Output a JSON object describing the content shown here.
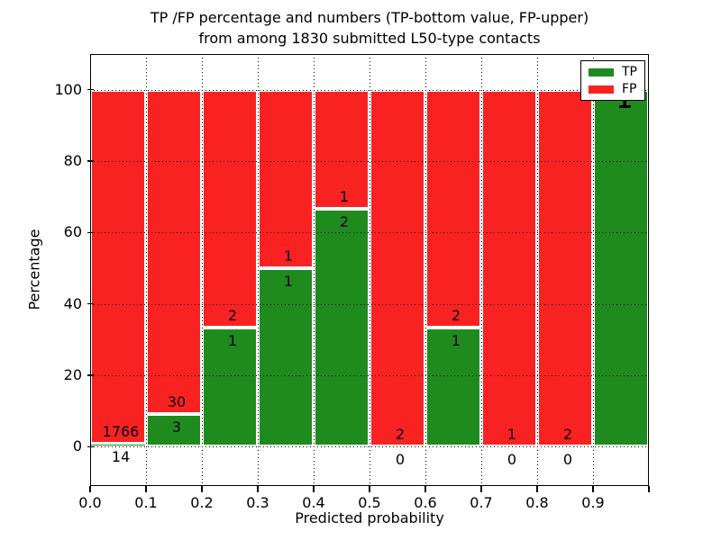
{
  "title": {
    "line1": "TP /FP percentage and numbers (TP-bottom value, FP-upper)",
    "line2": "from among 1830 submitted L50-type contacts"
  },
  "axes": {
    "xlabel": "Predicted probability",
    "ylabel": "Percentage",
    "x_tick_labels": [
      "0.0",
      "0.1",
      "0.2",
      "0.3",
      "0.4",
      "0.5",
      "0.6",
      "0.7",
      "0.8",
      "0.9"
    ],
    "y_tick_labels": [
      "0",
      "20",
      "40",
      "60",
      "80",
      "100"
    ]
  },
  "legend": {
    "items": [
      {
        "label": "TP",
        "color": "#1f8b1f"
      },
      {
        "label": "FP",
        "color": "#f92222"
      }
    ]
  },
  "colors": {
    "tp_green": "#1f8b1f",
    "fp_red": "#f92222",
    "bar_edge": "#ffffff",
    "text": "#000000",
    "background": "#ffffff"
  },
  "chart_data": {
    "type": "bar",
    "subtype": "stacked_percentage",
    "title": "TP /FP percentage and numbers (TP-bottom value, FP-upper) from among 1830 submitted L50-type contacts",
    "xlabel": "Predicted probability",
    "ylabel": "Percentage",
    "xlim": [
      0.0,
      1.0
    ],
    "ylim": [
      -11,
      110
    ],
    "grid": true,
    "legend_position": "upper right",
    "total_submitted": 1830,
    "bin_width": 0.1,
    "categories": [
      "0.0-0.1",
      "0.1-0.2",
      "0.2-0.3",
      "0.3-0.4",
      "0.4-0.5",
      "0.5-0.6",
      "0.6-0.7",
      "0.7-0.8",
      "0.8-0.9",
      "0.9-1.0"
    ],
    "series": [
      {
        "name": "TP",
        "color": "#1f8b1f",
        "values": [
          14,
          3,
          1,
          1,
          2,
          0,
          1,
          0,
          0,
          1
        ]
      },
      {
        "name": "FP",
        "color": "#f92222",
        "values": [
          1766,
          30,
          2,
          1,
          1,
          2,
          2,
          1,
          2,
          0
        ]
      }
    ],
    "bins": [
      {
        "range": [
          0.0,
          0.1
        ],
        "tp": 14,
        "fp": 1766,
        "tp_pct": 0.79,
        "tp_label": "14",
        "fp_label": "1766"
      },
      {
        "range": [
          0.1,
          0.2
        ],
        "tp": 3,
        "fp": 30,
        "tp_pct": 9.09,
        "tp_label": "3",
        "fp_label": "30"
      },
      {
        "range": [
          0.2,
          0.3
        ],
        "tp": 1,
        "fp": 2,
        "tp_pct": 33.33,
        "tp_label": "1",
        "fp_label": "2"
      },
      {
        "range": [
          0.3,
          0.4
        ],
        "tp": 1,
        "fp": 1,
        "tp_pct": 50.0,
        "tp_label": "1",
        "fp_label": "1"
      },
      {
        "range": [
          0.4,
          0.5
        ],
        "tp": 2,
        "fp": 1,
        "tp_pct": 66.67,
        "tp_label": "2",
        "fp_label": "1"
      },
      {
        "range": [
          0.5,
          0.6
        ],
        "tp": 0,
        "fp": 2,
        "tp_pct": 0.0,
        "tp_label": "0",
        "fp_label": "2"
      },
      {
        "range": [
          0.6,
          0.7
        ],
        "tp": 1,
        "fp": 2,
        "tp_pct": 33.33,
        "tp_label": "1",
        "fp_label": "2"
      },
      {
        "range": [
          0.7,
          0.8
        ],
        "tp": 0,
        "fp": 1,
        "tp_pct": 0.0,
        "tp_label": "0",
        "fp_label": "1"
      },
      {
        "range": [
          0.8,
          0.9
        ],
        "tp": 0,
        "fp": 2,
        "tp_pct": 0.0,
        "tp_label": "0",
        "fp_label": "2"
      },
      {
        "range": [
          0.9,
          1.0
        ],
        "tp": 1,
        "fp": 0,
        "tp_pct": 100.0,
        "tp_label": "1",
        "fp_label": null
      }
    ],
    "y_grid_values": [
      0,
      20,
      40,
      60,
      80,
      100
    ],
    "x_grid_values": [
      0.1,
      0.2,
      0.3,
      0.4,
      0.5,
      0.6,
      0.7,
      0.8,
      0.9
    ]
  }
}
